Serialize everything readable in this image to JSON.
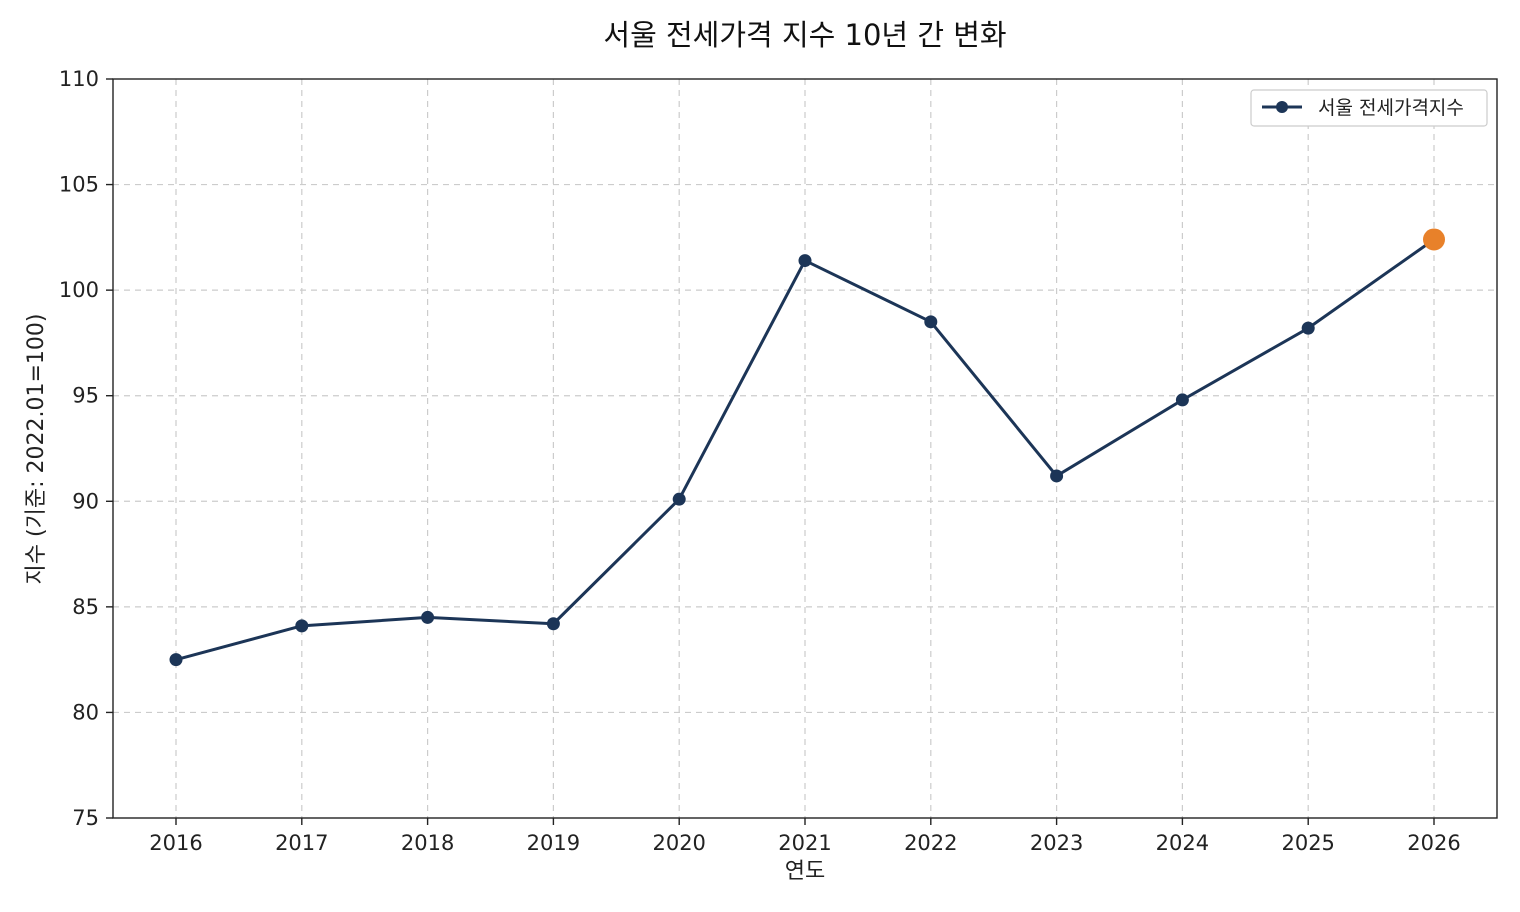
{
  "chart_data": {
    "type": "line",
    "title": "서울 전세가격 지수 10년 간 변화",
    "xlabel": "연도",
    "ylabel": "지수 (기준: 2022.01=100)",
    "categories": [
      "2016",
      "2017",
      "2018",
      "2019",
      "2020",
      "2021",
      "2022",
      "2023",
      "2024",
      "2025",
      "2026"
    ],
    "series": [
      {
        "name": "서울 전세가격지수",
        "values": [
          82.5,
          84.1,
          84.5,
          84.2,
          90.1,
          101.4,
          98.5,
          91.2,
          94.8,
          98.2,
          102.4
        ],
        "color": "#1c3557"
      }
    ],
    "highlight": {
      "index": 10,
      "color": "#e8812a"
    },
    "ylim": [
      75,
      110
    ],
    "yticks": [
      "75",
      "80",
      "85",
      "90",
      "95",
      "100",
      "105",
      "110"
    ],
    "grid": true,
    "legend_position": "top-right"
  }
}
